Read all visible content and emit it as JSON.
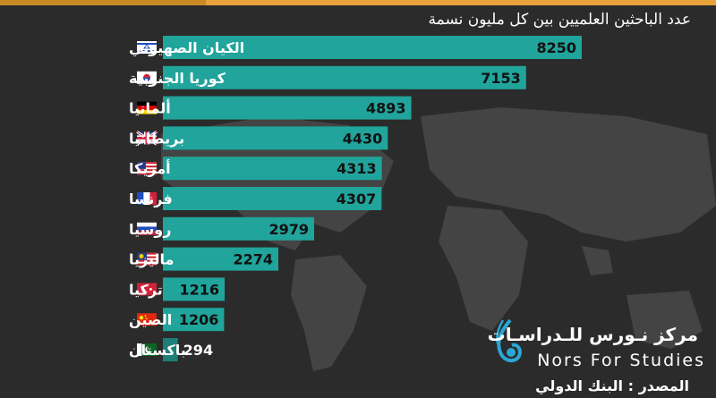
{
  "subtitle": "عدد الباحثين العلميين بين كل مليون نسمة",
  "source": "المصدر : البنك الدولي",
  "logo": {
    "arabic": "مركز نـورس للـدراسـات",
    "english": "Nors For Studies"
  },
  "colors": {
    "bar": "#20a49b",
    "bar_last": "#1c7f78",
    "background": "#2b2b2b",
    "accent": "#e8a33a"
  },
  "chart_data": {
    "type": "bar",
    "orientation": "horizontal",
    "title": "عدد الباحثين العلميين بين كل مليون نسمة",
    "categories": [
      "الكيان الصهيوني",
      "كوريا الجنوبية",
      "ألمانيا",
      "بريطانيا",
      "أمريكا",
      "فرنسا",
      "روسيا",
      "ماليزيا",
      "تركيا",
      "الصين",
      "باكستان"
    ],
    "flags": [
      "israel",
      "south-korea",
      "germany",
      "uk",
      "usa",
      "france",
      "russia",
      "malaysia",
      "turkey",
      "china",
      "pakistan"
    ],
    "values": [
      8250,
      7153,
      4893,
      4430,
      4313,
      4307,
      2979,
      2274,
      1216,
      1206,
      294
    ],
    "xlim": [
      0,
      8250
    ]
  }
}
